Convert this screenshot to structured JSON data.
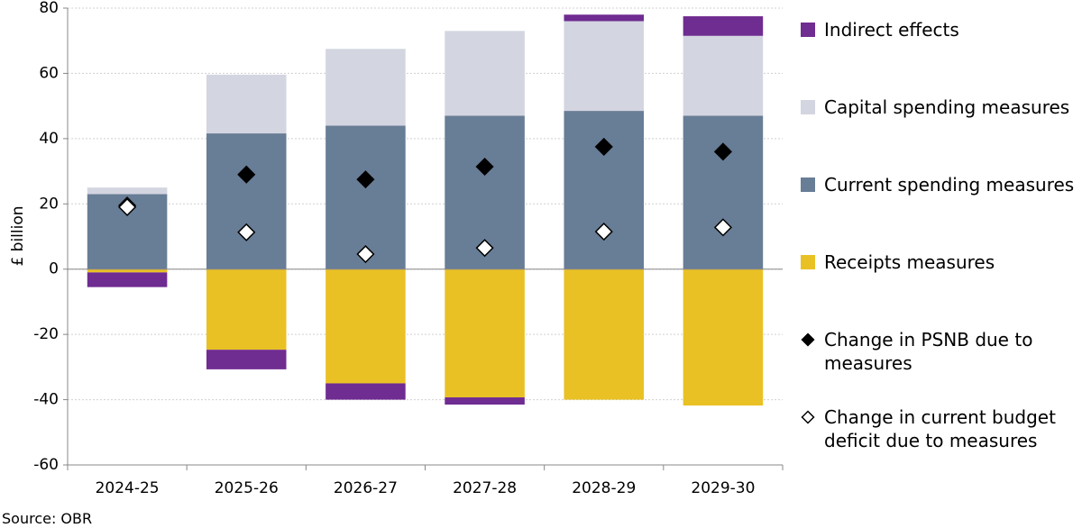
{
  "chart_data": {
    "type": "bar",
    "stacked": true,
    "y_label": "£ billion",
    "source": "Source: OBR",
    "categories": [
      "2024-25",
      "2025-26",
      "2026-27",
      "2027-28",
      "2028-29",
      "2029-30"
    ],
    "series": [
      {
        "name": "Indirect effects",
        "type": "bar",
        "color": "#6f2c91",
        "values": [
          -4.5,
          -6,
          -5,
          -2.2,
          2,
          6
        ]
      },
      {
        "name": "Capital spending measures",
        "type": "bar",
        "color": "#d3d5e0",
        "values": [
          2,
          18,
          23.5,
          26,
          27.5,
          24.5
        ]
      },
      {
        "name": "Current spending measures",
        "type": "bar",
        "color": "#687d96",
        "values": [
          23,
          41.6,
          44,
          47,
          48.5,
          47
        ]
      },
      {
        "name": "Receipts measures",
        "type": "bar",
        "color": "#e9c125",
        "values": [
          -1,
          -24.7,
          -35,
          -39.3,
          -40,
          -41.8
        ]
      },
      {
        "name": "Change in PSNB due to measures",
        "type": "scatter",
        "color": "#000000",
        "values": [
          19.5,
          29,
          27.5,
          31.4,
          37.5,
          36
        ]
      },
      {
        "name": "Change in current budget deficit due to measures",
        "type": "scatter",
        "color": "#ffffff",
        "values": [
          19,
          11.3,
          4.6,
          6.5,
          11.5,
          12.8
        ]
      }
    ],
    "ylim": [
      -60,
      80
    ],
    "yticks": [
      -60,
      -40,
      -20,
      0,
      20,
      40,
      60,
      80
    ],
    "grid": true
  }
}
